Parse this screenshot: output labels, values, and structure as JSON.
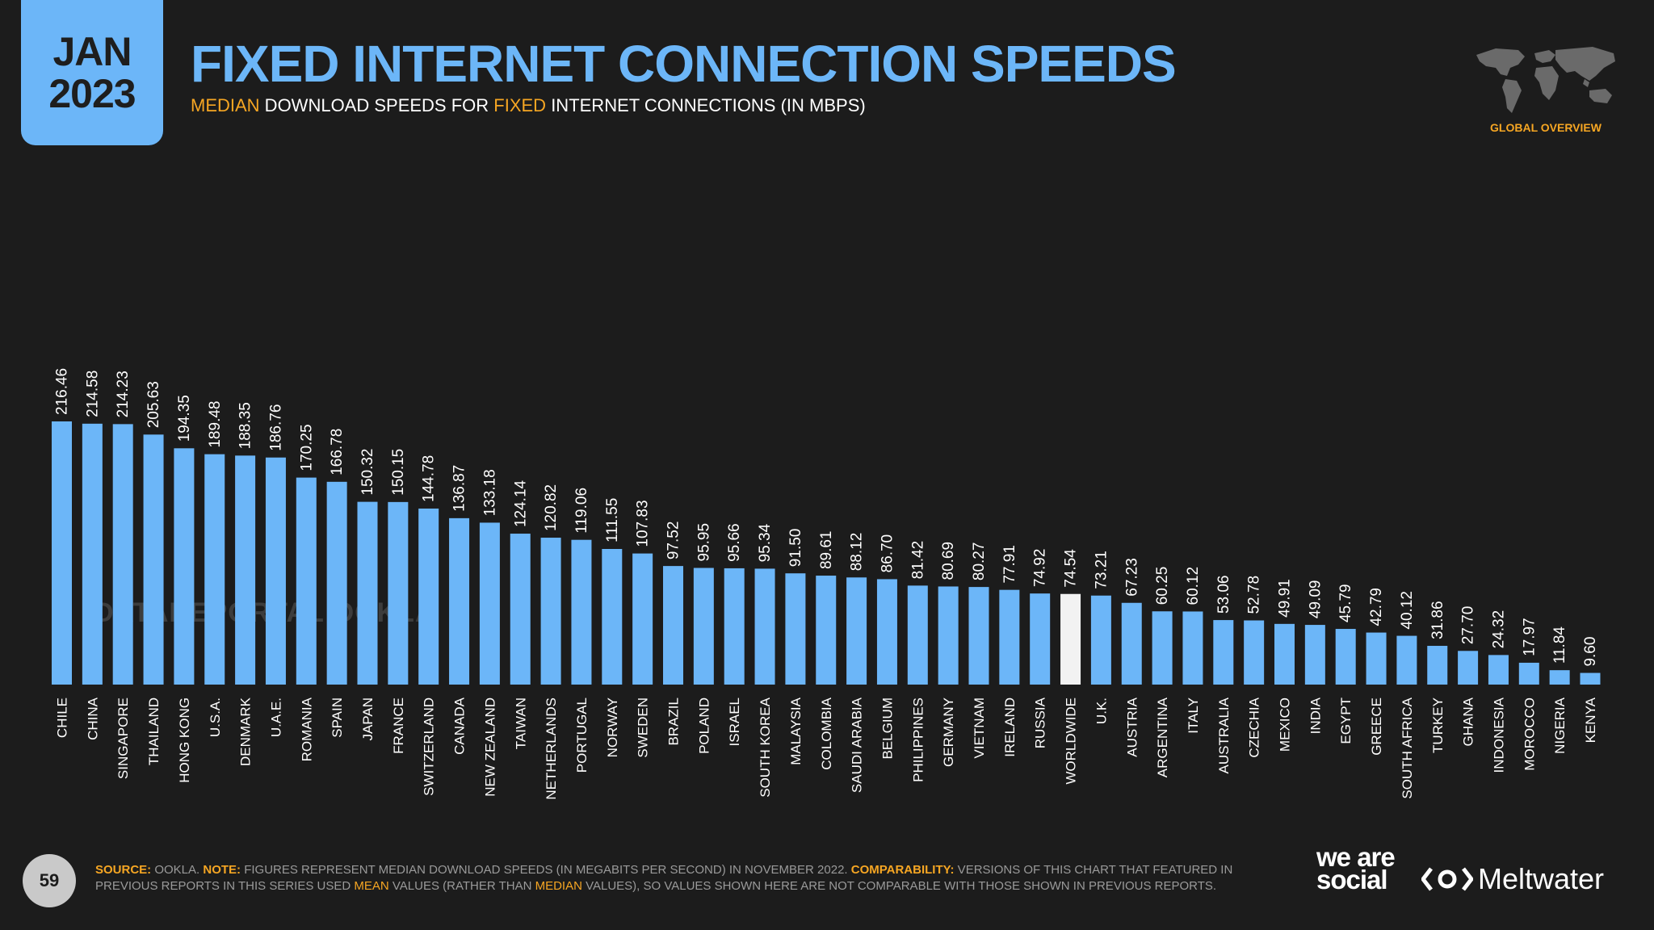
{
  "header": {
    "date_month": "JAN",
    "date_year": "2023",
    "title": "FIXED INTERNET CONNECTION SPEEDS",
    "subtitle_parts": [
      "MEDIAN",
      " DOWNLOAD SPEEDS FOR ",
      "FIXED",
      " INTERNET CONNECTIONS (IN MBPS)"
    ],
    "overview_label": "GLOBAL OVERVIEW",
    "map_icon": "world-map-icon"
  },
  "watermark": "DATAREPORTAL   OOKLA",
  "footer": {
    "page_number": "59",
    "source_key": "SOURCE:",
    "source_text": " OOKLA. ",
    "note_key": "NOTE:",
    "note_text": " FIGURES REPRESENT MEDIAN DOWNLOAD SPEEDS (IN MEGABITS PER SECOND) IN NOVEMBER 2022. ",
    "comp_key": "COMPARABILITY:",
    "comp_text_1": " VERSIONS OF THIS CHART THAT FEATURED IN PREVIOUS REPORTS IN THIS SERIES USED ",
    "comp_mean": "MEAN",
    "comp_text_2": " VALUES (RATHER THAN ",
    "comp_median": "MEDIAN",
    "comp_text_3": " VALUES), SO VALUES SHOWN HERE ARE NOT COMPARABLE WITH THOSE SHOWN IN PREVIOUS REPORTS.",
    "brand_1": "we are social",
    "brand_2": "Meltwater"
  },
  "colors": {
    "background": "#1c1c1c",
    "bar": "#6cb6f8",
    "highlight_bar": "#f2f2f2",
    "accent": "#f6a623"
  },
  "chart_data": {
    "type": "bar",
    "title": "FIXED INTERNET CONNECTION SPEEDS",
    "subtitle": "MEDIAN DOWNLOAD SPEEDS FOR FIXED INTERNET CONNECTIONS (IN MBPS)",
    "highlight": "WORLDWIDE",
    "ylim": [
      0,
      216.46
    ],
    "grid": false,
    "categories": [
      "CHILE",
      "CHINA",
      "SINGAPORE",
      "THAILAND",
      "HONG KONG",
      "U.S.A.",
      "DENMARK",
      "U.A.E.",
      "ROMANIA",
      "SPAIN",
      "JAPAN",
      "FRANCE",
      "SWITZERLAND",
      "CANADA",
      "NEW ZEALAND",
      "TAIWAN",
      "NETHERLANDS",
      "PORTUGAL",
      "NORWAY",
      "SWEDEN",
      "BRAZIL",
      "POLAND",
      "ISRAEL",
      "SOUTH KOREA",
      "MALAYSIA",
      "COLOMBIA",
      "SAUDI ARABIA",
      "BELGIUM",
      "PHILIPPINES",
      "GERMANY",
      "VIETNAM",
      "IRELAND",
      "RUSSIA",
      "WORLDWIDE",
      "U.K.",
      "AUSTRIA",
      "ARGENTINA",
      "ITALY",
      "AUSTRALIA",
      "CZECHIA",
      "MEXICO",
      "INDIA",
      "EGYPT",
      "GREECE",
      "SOUTH AFRICA",
      "TURKEY",
      "GHANA",
      "INDONESIA",
      "MOROCCO",
      "NIGERIA",
      "KENYA"
    ],
    "values": [
      216.46,
      214.58,
      214.23,
      205.63,
      194.35,
      189.48,
      188.35,
      186.76,
      170.25,
      166.78,
      150.32,
      150.15,
      144.78,
      136.87,
      133.18,
      124.14,
      120.82,
      119.06,
      111.55,
      107.83,
      97.52,
      95.95,
      95.66,
      95.34,
      91.5,
      89.61,
      88.12,
      86.7,
      81.42,
      80.69,
      80.27,
      77.91,
      74.92,
      74.54,
      73.21,
      67.23,
      60.25,
      60.12,
      53.06,
      52.78,
      49.91,
      49.09,
      45.79,
      42.79,
      40.12,
      31.86,
      27.7,
      24.32,
      17.97,
      11.84,
      9.6
    ]
  }
}
